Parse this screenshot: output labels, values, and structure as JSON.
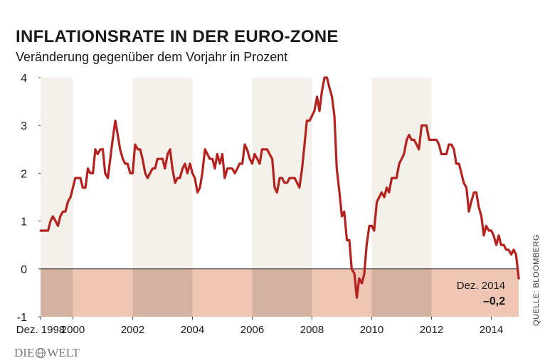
{
  "header": {
    "title": "INFLATIONSRATE IN DER EURO-ZONE",
    "subtitle": "Veränderung gegenüber dem Vorjahr in Prozent"
  },
  "source": "QUELLE: BLOOMBERG",
  "logo": {
    "left": "DIE",
    "right": "WELT"
  },
  "annotation": {
    "label": "Dez. 2014",
    "value": "–0,2"
  },
  "colors": {
    "line": "#b5221e",
    "band": "#f3f1ea",
    "negative_zone": "#efc6b4",
    "negative_band": "#d4b2a2"
  },
  "chart_data": {
    "type": "line",
    "title": "INFLATIONSRATE IN DER EURO-ZONE",
    "subtitle": "Veränderung gegenüber dem Vorjahr in Prozent",
    "xlabel": "",
    "ylabel": "",
    "xlim": [
      1998.917,
      2014.917
    ],
    "ylim": [
      -1,
      4
    ],
    "x_ticks": [
      {
        "value": 1998.917,
        "label": "Dez. 1998"
      },
      {
        "value": 2000,
        "label": "2000"
      },
      {
        "value": 2002,
        "label": "2002"
      },
      {
        "value": 2004,
        "label": "2004"
      },
      {
        "value": 2006,
        "label": "2006"
      },
      {
        "value": 2008,
        "label": "2008"
      },
      {
        "value": 2010,
        "label": "2010"
      },
      {
        "value": 2012,
        "label": "2012"
      },
      {
        "value": 2014,
        "label": "2014"
      }
    ],
    "y_ticks": [
      {
        "value": 4,
        "label": "4"
      },
      {
        "value": 3,
        "label": "3"
      },
      {
        "value": 2,
        "label": "2"
      },
      {
        "value": 1,
        "label": "1"
      },
      {
        "value": 0,
        "label": "0"
      },
      {
        "value": -1,
        "label": "-1"
      }
    ],
    "shaded_periods": [
      [
        1998.917,
        2000
      ],
      [
        2002,
        2004
      ],
      [
        2006,
        2008
      ],
      [
        2010,
        2012
      ]
    ],
    "series": [
      {
        "points": [
          [
            1998.92,
            0.8
          ],
          [
            1999.08,
            0.8
          ],
          [
            1999.17,
            0.8
          ],
          [
            1999.25,
            1.0
          ],
          [
            1999.33,
            1.1
          ],
          [
            1999.42,
            1.0
          ],
          [
            1999.5,
            0.9
          ],
          [
            1999.58,
            1.1
          ],
          [
            1999.67,
            1.2
          ],
          [
            1999.75,
            1.2
          ],
          [
            1999.83,
            1.4
          ],
          [
            1999.92,
            1.5
          ],
          [
            2000.0,
            1.7
          ],
          [
            2000.08,
            1.9
          ],
          [
            2000.17,
            1.9
          ],
          [
            2000.25,
            1.9
          ],
          [
            2000.33,
            1.7
          ],
          [
            2000.42,
            1.7
          ],
          [
            2000.5,
            2.1
          ],
          [
            2000.58,
            2.0
          ],
          [
            2000.67,
            2.0
          ],
          [
            2000.75,
            2.5
          ],
          [
            2000.83,
            2.4
          ],
          [
            2000.92,
            2.5
          ],
          [
            2001.0,
            2.5
          ],
          [
            2001.08,
            2.0
          ],
          [
            2001.17,
            1.9
          ],
          [
            2001.25,
            2.3
          ],
          [
            2001.33,
            2.7
          ],
          [
            2001.42,
            3.1
          ],
          [
            2001.5,
            2.8
          ],
          [
            2001.58,
            2.5
          ],
          [
            2001.67,
            2.3
          ],
          [
            2001.75,
            2.2
          ],
          [
            2001.83,
            2.2
          ],
          [
            2001.92,
            2.0
          ],
          [
            2002.0,
            2.0
          ],
          [
            2002.08,
            2.6
          ],
          [
            2002.17,
            2.5
          ],
          [
            2002.25,
            2.5
          ],
          [
            2002.33,
            2.3
          ],
          [
            2002.42,
            2.0
          ],
          [
            2002.5,
            1.9
          ],
          [
            2002.58,
            2.0
          ],
          [
            2002.67,
            2.1
          ],
          [
            2002.75,
            2.1
          ],
          [
            2002.83,
            2.3
          ],
          [
            2002.92,
            2.3
          ],
          [
            2003.0,
            2.3
          ],
          [
            2003.08,
            2.1
          ],
          [
            2003.17,
            2.4
          ],
          [
            2003.25,
            2.5
          ],
          [
            2003.33,
            2.1
          ],
          [
            2003.42,
            1.8
          ],
          [
            2003.5,
            1.9
          ],
          [
            2003.58,
            1.9
          ],
          [
            2003.67,
            2.1
          ],
          [
            2003.75,
            2.2
          ],
          [
            2003.83,
            2.0
          ],
          [
            2003.92,
            2.2
          ],
          [
            2004.0,
            2.0
          ],
          [
            2004.08,
            1.9
          ],
          [
            2004.17,
            1.6
          ],
          [
            2004.25,
            1.7
          ],
          [
            2004.33,
            2.0
          ],
          [
            2004.42,
            2.5
          ],
          [
            2004.5,
            2.4
          ],
          [
            2004.58,
            2.3
          ],
          [
            2004.67,
            2.3
          ],
          [
            2004.75,
            2.1
          ],
          [
            2004.83,
            2.4
          ],
          [
            2004.92,
            2.2
          ],
          [
            2005.0,
            2.4
          ],
          [
            2005.08,
            1.9
          ],
          [
            2005.17,
            2.1
          ],
          [
            2005.25,
            2.1
          ],
          [
            2005.33,
            2.1
          ],
          [
            2005.42,
            2.0
          ],
          [
            2005.5,
            2.1
          ],
          [
            2005.58,
            2.2
          ],
          [
            2005.67,
            2.2
          ],
          [
            2005.75,
            2.6
          ],
          [
            2005.83,
            2.5
          ],
          [
            2005.92,
            2.3
          ],
          [
            2006.0,
            2.2
          ],
          [
            2006.08,
            2.4
          ],
          [
            2006.17,
            2.3
          ],
          [
            2006.25,
            2.2
          ],
          [
            2006.33,
            2.5
          ],
          [
            2006.42,
            2.5
          ],
          [
            2006.5,
            2.5
          ],
          [
            2006.58,
            2.4
          ],
          [
            2006.67,
            2.3
          ],
          [
            2006.75,
            1.7
          ],
          [
            2006.83,
            1.6
          ],
          [
            2006.92,
            1.9
          ],
          [
            2007.0,
            1.9
          ],
          [
            2007.08,
            1.8
          ],
          [
            2007.17,
            1.8
          ],
          [
            2007.25,
            1.9
          ],
          [
            2007.33,
            1.9
          ],
          [
            2007.42,
            1.9
          ],
          [
            2007.5,
            1.8
          ],
          [
            2007.58,
            1.7
          ],
          [
            2007.67,
            2.1
          ],
          [
            2007.75,
            2.6
          ],
          [
            2007.83,
            3.1
          ],
          [
            2007.92,
            3.1
          ],
          [
            2008.0,
            3.2
          ],
          [
            2008.08,
            3.3
          ],
          [
            2008.17,
            3.6
          ],
          [
            2008.25,
            3.3
          ],
          [
            2008.33,
            3.7
          ],
          [
            2008.42,
            4.0
          ],
          [
            2008.5,
            4.0
          ],
          [
            2008.58,
            3.8
          ],
          [
            2008.67,
            3.6
          ],
          [
            2008.75,
            3.2
          ],
          [
            2008.83,
            2.1
          ],
          [
            2008.92,
            1.6
          ],
          [
            2009.0,
            1.1
          ],
          [
            2009.08,
            1.2
          ],
          [
            2009.17,
            0.6
          ],
          [
            2009.25,
            0.6
          ],
          [
            2009.33,
            0.0
          ],
          [
            2009.42,
            -0.1
          ],
          [
            2009.5,
            -0.6
          ],
          [
            2009.58,
            -0.2
          ],
          [
            2009.67,
            -0.3
          ],
          [
            2009.75,
            -0.1
          ],
          [
            2009.83,
            0.5
          ],
          [
            2009.92,
            0.9
          ],
          [
            2010.0,
            0.9
          ],
          [
            2010.08,
            0.8
          ],
          [
            2010.17,
            1.4
          ],
          [
            2010.25,
            1.5
          ],
          [
            2010.33,
            1.6
          ],
          [
            2010.42,
            1.5
          ],
          [
            2010.5,
            1.7
          ],
          [
            2010.58,
            1.6
          ],
          [
            2010.67,
            1.9
          ],
          [
            2010.75,
            1.9
          ],
          [
            2010.83,
            1.9
          ],
          [
            2010.92,
            2.2
          ],
          [
            2011.0,
            2.3
          ],
          [
            2011.08,
            2.4
          ],
          [
            2011.17,
            2.7
          ],
          [
            2011.25,
            2.8
          ],
          [
            2011.33,
            2.7
          ],
          [
            2011.42,
            2.7
          ],
          [
            2011.5,
            2.6
          ],
          [
            2011.58,
            2.5
          ],
          [
            2011.67,
            3.0
          ],
          [
            2011.75,
            3.0
          ],
          [
            2011.83,
            3.0
          ],
          [
            2011.92,
            2.7
          ],
          [
            2012.0,
            2.7
          ],
          [
            2012.08,
            2.7
          ],
          [
            2012.17,
            2.7
          ],
          [
            2012.25,
            2.6
          ],
          [
            2012.33,
            2.4
          ],
          [
            2012.42,
            2.4
          ],
          [
            2012.5,
            2.4
          ],
          [
            2012.58,
            2.6
          ],
          [
            2012.67,
            2.6
          ],
          [
            2012.75,
            2.5
          ],
          [
            2012.83,
            2.2
          ],
          [
            2012.92,
            2.2
          ],
          [
            2013.0,
            2.0
          ],
          [
            2013.08,
            1.8
          ],
          [
            2013.17,
            1.7
          ],
          [
            2013.25,
            1.2
          ],
          [
            2013.33,
            1.4
          ],
          [
            2013.42,
            1.6
          ],
          [
            2013.5,
            1.6
          ],
          [
            2013.58,
            1.3
          ],
          [
            2013.67,
            1.1
          ],
          [
            2013.75,
            0.7
          ],
          [
            2013.83,
            0.9
          ],
          [
            2013.92,
            0.8
          ],
          [
            2014.0,
            0.8
          ],
          [
            2014.08,
            0.7
          ],
          [
            2014.17,
            0.5
          ],
          [
            2014.25,
            0.7
          ],
          [
            2014.33,
            0.5
          ],
          [
            2014.42,
            0.5
          ],
          [
            2014.5,
            0.4
          ],
          [
            2014.58,
            0.4
          ],
          [
            2014.67,
            0.3
          ],
          [
            2014.75,
            0.4
          ],
          [
            2014.83,
            0.3
          ],
          [
            2014.92,
            -0.2
          ]
        ]
      }
    ]
  }
}
